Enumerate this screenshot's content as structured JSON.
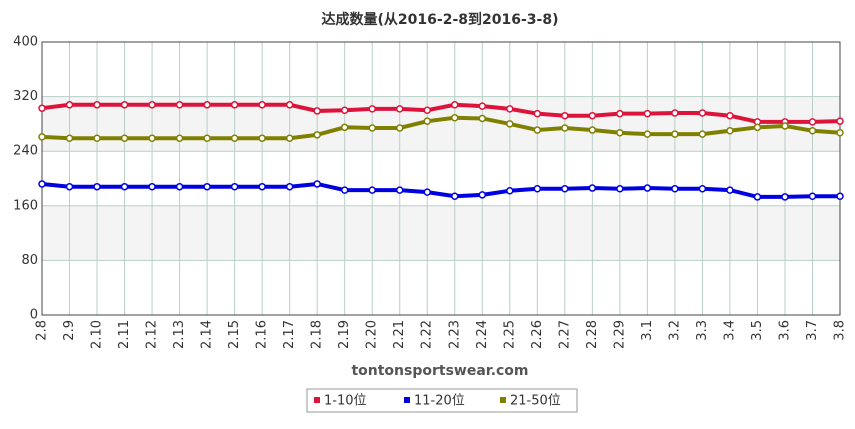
{
  "chart_data": {
    "type": "line",
    "title": "达成数量(从2016-2-8到2016-3-8)",
    "watermark": "tontonsportswear.com",
    "categories": [
      "2.8",
      "2.9",
      "2.10",
      "2.11",
      "2.12",
      "2.13",
      "2.14",
      "2.15",
      "2.16",
      "2.17",
      "2.18",
      "2.19",
      "2.20",
      "2.21",
      "2.22",
      "2.23",
      "2.24",
      "2.25",
      "2.26",
      "2.27",
      "2.28",
      "2.29",
      "3.1",
      "3.2",
      "3.3",
      "3.4",
      "3.5",
      "3.6",
      "3.7",
      "3.8"
    ],
    "series": [
      {
        "name": "1-10位",
        "color": "#dc143c",
        "values": [
          303,
          308,
          308,
          308,
          308,
          308,
          308,
          308,
          308,
          308,
          299,
          300,
          302,
          302,
          300,
          308,
          306,
          302,
          295,
          292,
          292,
          295,
          295,
          296,
          296,
          292,
          283,
          283,
          283,
          284
        ]
      },
      {
        "name": "11-20位",
        "color": "#0000e0",
        "values": [
          192,
          188,
          188,
          188,
          188,
          188,
          188,
          188,
          188,
          188,
          192,
          183,
          183,
          183,
          180,
          174,
          176,
          182,
          185,
          185,
          186,
          185,
          186,
          185,
          185,
          183,
          173,
          173,
          174,
          174
        ]
      },
      {
        "name": "21-50位",
        "color": "#808000",
        "values": [
          261,
          259,
          259,
          259,
          259,
          259,
          259,
          259,
          259,
          259,
          264,
          275,
          274,
          274,
          284,
          289,
          288,
          280,
          271,
          274,
          271,
          267,
          265,
          265,
          265,
          270,
          275,
          277,
          270,
          267
        ]
      }
    ],
    "ylim": [
      0,
      400
    ],
    "yticks": [
      0,
      80,
      160,
      240,
      320,
      400
    ],
    "grid": true
  }
}
